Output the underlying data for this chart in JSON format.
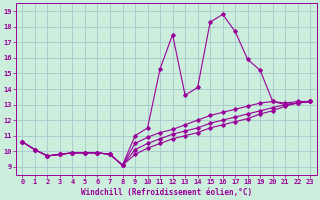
{
  "xlabel": "Windchill (Refroidissement éolien,°C)",
  "xlim": [
    -0.5,
    23.5
  ],
  "ylim": [
    8.5,
    19.5
  ],
  "xticks": [
    0,
    1,
    2,
    3,
    4,
    5,
    6,
    7,
    8,
    9,
    10,
    11,
    12,
    13,
    14,
    15,
    16,
    17,
    18,
    19,
    20,
    21,
    22,
    23
  ],
  "yticks": [
    9,
    10,
    11,
    12,
    13,
    14,
    15,
    16,
    17,
    18,
    19
  ],
  "bg_color": "#cceedd",
  "grid_color": "#aacccc",
  "line_color": "#990099",
  "lines": [
    {
      "x": [
        0,
        1,
        2,
        3,
        4,
        5,
        6,
        7,
        8,
        9,
        10,
        11,
        12,
        13,
        14,
        15,
        16,
        17,
        18,
        19,
        20,
        21,
        22,
        23
      ],
      "y": [
        10.6,
        10.1,
        9.7,
        9.8,
        9.9,
        9.9,
        9.9,
        9.8,
        9.1,
        11.0,
        11.5,
        15.3,
        17.5,
        13.6,
        14.1,
        18.3,
        18.8,
        17.7,
        15.9,
        15.2,
        13.2,
        13.0,
        13.1,
        13.2
      ]
    },
    {
      "x": [
        0,
        1,
        2,
        3,
        4,
        5,
        6,
        7,
        8,
        9,
        10,
        11,
        12,
        13,
        14,
        15,
        16,
        17,
        18,
        19,
        20,
        21,
        22,
        23
      ],
      "y": [
        10.6,
        10.1,
        9.7,
        9.8,
        9.9,
        9.9,
        9.9,
        9.8,
        9.1,
        10.5,
        10.9,
        11.2,
        11.4,
        11.7,
        12.0,
        12.3,
        12.5,
        12.7,
        12.9,
        13.1,
        13.2,
        13.1,
        13.2,
        13.2
      ]
    },
    {
      "x": [
        0,
        1,
        2,
        3,
        4,
        5,
        6,
        7,
        8,
        9,
        10,
        11,
        12,
        13,
        14,
        15,
        16,
        17,
        18,
        19,
        20,
        21,
        22,
        23
      ],
      "y": [
        10.6,
        10.1,
        9.7,
        9.8,
        9.9,
        9.9,
        9.9,
        9.8,
        9.1,
        10.1,
        10.5,
        10.8,
        11.1,
        11.3,
        11.5,
        11.8,
        12.0,
        12.2,
        12.4,
        12.6,
        12.8,
        13.0,
        13.1,
        13.2
      ]
    },
    {
      "x": [
        0,
        1,
        2,
        3,
        4,
        5,
        6,
        7,
        8,
        9,
        10,
        11,
        12,
        13,
        14,
        15,
        16,
        17,
        18,
        19,
        20,
        21,
        22,
        23
      ],
      "y": [
        10.6,
        10.1,
        9.7,
        9.8,
        9.9,
        9.9,
        9.9,
        9.8,
        9.1,
        9.8,
        10.2,
        10.5,
        10.8,
        11.0,
        11.2,
        11.5,
        11.7,
        11.9,
        12.1,
        12.4,
        12.6,
        12.9,
        13.1,
        13.2
      ]
    }
  ]
}
